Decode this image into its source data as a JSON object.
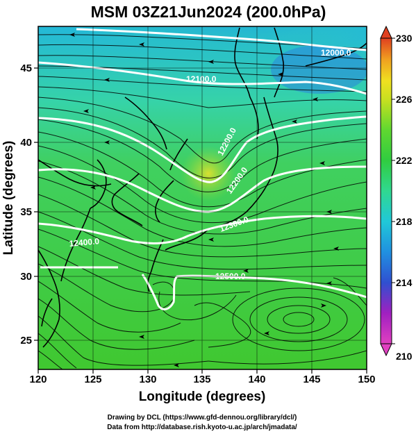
{
  "title": "MSM 03Z21Jun2024 (200.0hPa)",
  "xaxis": {
    "label": "Longitude (degrees)",
    "range": [
      120,
      150
    ],
    "ticks": [
      "120",
      "125",
      "130",
      "135",
      "140",
      "145",
      "150"
    ]
  },
  "yaxis": {
    "label": "Latitude  (degrees)",
    "range": [
      22.4,
      47.6
    ],
    "ticks": [
      "25",
      "30",
      "35",
      "40",
      "45"
    ]
  },
  "colorbar": {
    "range": [
      210,
      230
    ],
    "ticks": [
      "210",
      "214",
      "218",
      "222",
      "226",
      "230"
    ],
    "colors": [
      "#e040c0",
      "#a020c0",
      "#3050d0",
      "#2090e0",
      "#20c8d8",
      "#30d890",
      "#30cc40",
      "#60d830",
      "#c8e020",
      "#f0e020",
      "#f0a020",
      "#e04020"
    ]
  },
  "contours": [
    {
      "label": "12000.0"
    },
    {
      "label": "12100.0"
    },
    {
      "label": "12200.0"
    },
    {
      "label": "12200.0"
    },
    {
      "label": "12300.0"
    },
    {
      "label": "12400.0"
    },
    {
      "label": "12500.0"
    }
  ],
  "credits": {
    "line1": "Drawing by DCL (https://www.gfd-dennou.org/library/dcl/)",
    "line2": "Data from http://database.rish.kyoto-u.ac.jp/arch/jmadata/"
  }
}
